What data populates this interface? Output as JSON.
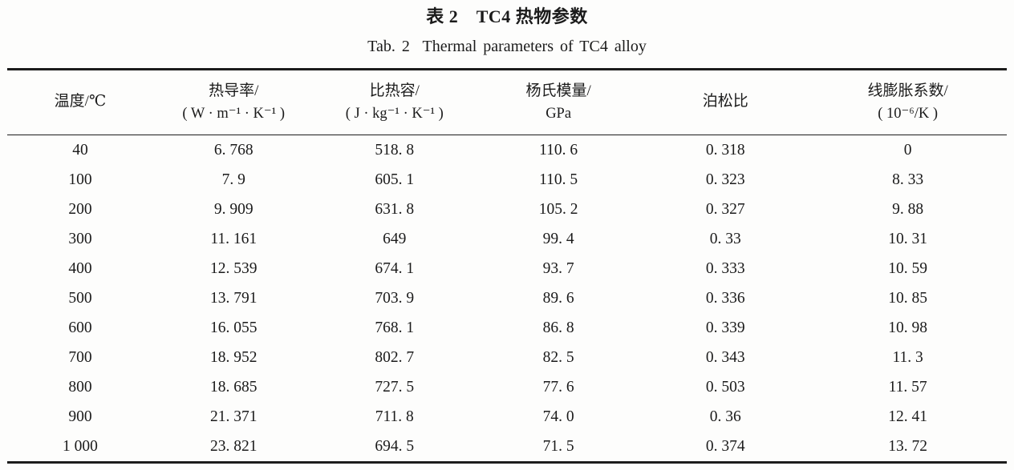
{
  "table_caption": {
    "zh": "表 2　TC4 热物参数",
    "en": "Tab. 2  Thermal parameters of TC4 alloy"
  },
  "table": {
    "columns": [
      {
        "label_line1": "温度/℃",
        "label_line2": ""
      },
      {
        "label_line1": "热导率/",
        "label_line2": "( W · m⁻¹ · K⁻¹ )"
      },
      {
        "label_line1": "比热容/",
        "label_line2": "( J · kg⁻¹ · K⁻¹ )"
      },
      {
        "label_line1": "杨氏模量/",
        "label_line2": "GPa"
      },
      {
        "label_line1": "泊松比",
        "label_line2": ""
      },
      {
        "label_line1": "线膨胀系数/",
        "label_line2": "( 10⁻⁶/K )"
      }
    ],
    "rows": [
      [
        "40",
        "6. 768",
        "518. 8",
        "110. 6",
        "0. 318",
        "0"
      ],
      [
        "100",
        "7. 9",
        "605. 1",
        "110. 5",
        "0. 323",
        "8. 33"
      ],
      [
        "200",
        "9. 909",
        "631. 8",
        "105. 2",
        "0. 327",
        "9. 88"
      ],
      [
        "300",
        "11. 161",
        "649",
        "99. 4",
        "0. 33",
        "10. 31"
      ],
      [
        "400",
        "12. 539",
        "674. 1",
        "93. 7",
        "0. 333",
        "10. 59"
      ],
      [
        "500",
        "13. 791",
        "703. 9",
        "89. 6",
        "0. 336",
        "10. 85"
      ],
      [
        "600",
        "16. 055",
        "768. 1",
        "86. 8",
        "0. 339",
        "10. 98"
      ],
      [
        "700",
        "18. 952",
        "802. 7",
        "82. 5",
        "0. 343",
        "11. 3"
      ],
      [
        "800",
        "18. 685",
        "727. 5",
        "77. 6",
        "0. 503",
        "11. 57"
      ],
      [
        "900",
        "21. 371",
        "711. 8",
        "74. 0",
        "0. 36",
        "12. 41"
      ],
      [
        "1 000",
        "23. 821",
        "694. 5",
        "71. 5",
        "0. 374",
        "13. 72"
      ]
    ]
  }
}
